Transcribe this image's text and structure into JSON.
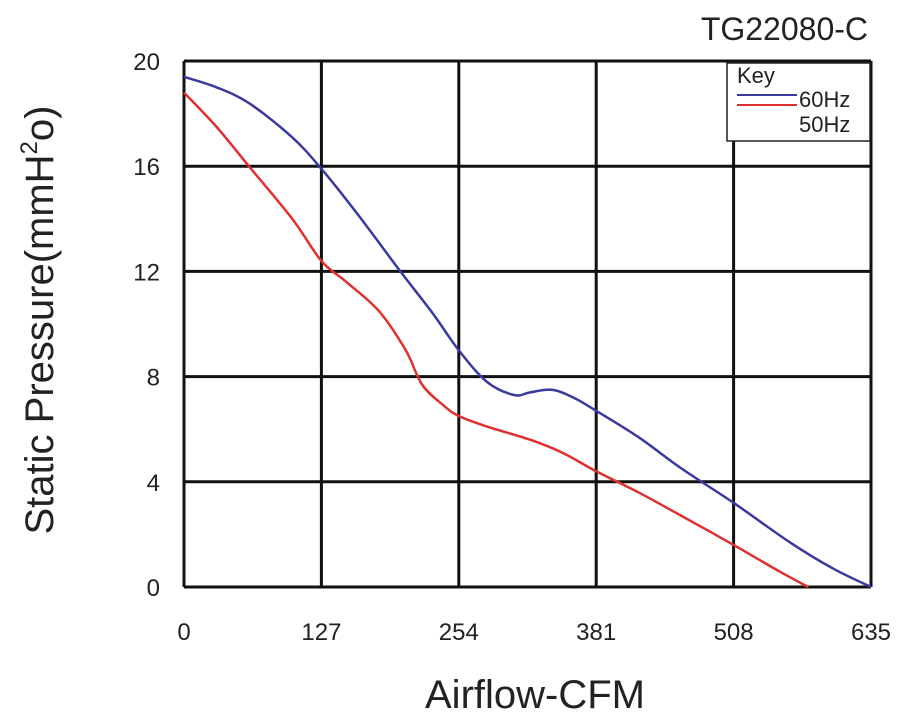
{
  "chart_data": {
    "type": "line",
    "title": "TG22080-C",
    "xlabel": "Airflow-CFM",
    "ylabel": "Static Pressure(mmH",
    "ylabel_superscript": "2",
    "ylabel_suffix": "o)",
    "xlim": [
      0,
      635
    ],
    "ylim": [
      0,
      20
    ],
    "x_ticks": [
      0,
      127,
      254,
      381,
      508,
      635
    ],
    "y_ticks": [
      0,
      4,
      8,
      12,
      16,
      20
    ],
    "grid": true,
    "legend": {
      "title": "Key",
      "placement": "top-right",
      "entries": [
        "60Hz",
        "50Hz"
      ]
    },
    "series": [
      {
        "name": "60Hz",
        "color": "#3a3a9e",
        "x": [
          0,
          30,
          60,
          100,
          127,
          160,
          200,
          230,
          254,
          280,
          305,
          320,
          340,
          360,
          381,
          420,
          460,
          508,
          560,
          600,
          635
        ],
        "y": [
          19.4,
          19.0,
          18.4,
          17.1,
          15.9,
          14.2,
          12.0,
          10.4,
          9.0,
          7.8,
          7.3,
          7.4,
          7.5,
          7.2,
          6.7,
          5.7,
          4.5,
          3.2,
          1.7,
          0.7,
          0.0
        ]
      },
      {
        "name": "50Hz",
        "color": "#e03030",
        "x": [
          0,
          30,
          60,
          100,
          127,
          150,
          180,
          205,
          220,
          240,
          254,
          280,
          320,
          350,
          381,
          420,
          460,
          508,
          550,
          577
        ],
        "y": [
          18.8,
          17.5,
          16.0,
          14.0,
          12.4,
          11.6,
          10.5,
          9.0,
          7.7,
          6.9,
          6.5,
          6.1,
          5.6,
          5.1,
          4.4,
          3.6,
          2.7,
          1.6,
          0.6,
          0.0
        ]
      }
    ]
  }
}
